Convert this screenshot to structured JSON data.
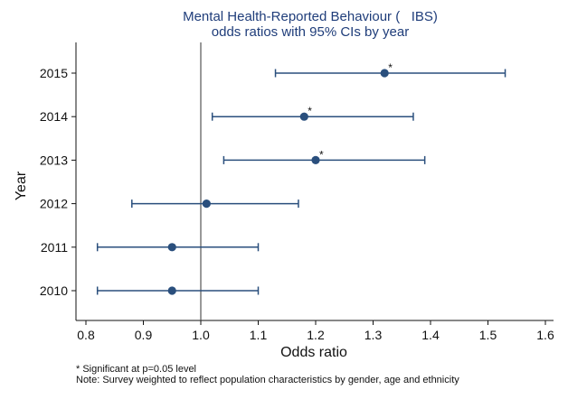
{
  "chart_data": {
    "type": "forest",
    "title": [
      "Mental Health-Reported Behaviour (   IBS)",
      "odds ratios with 95% CIs by year"
    ],
    "xlabel": "Odds ratio",
    "ylabel": "Year",
    "xlim": [
      0.8,
      1.6
    ],
    "xticks": [
      "0.8",
      "0.9",
      "1.0",
      "1.1",
      "1.2",
      "1.3",
      "1.4",
      "1.5",
      "1.6"
    ],
    "reference_line": 1.0,
    "categories": [
      "2015",
      "2014",
      "2013",
      "2012",
      "2011",
      "2010"
    ],
    "estimates": [
      {
        "year": "2015",
        "or": 1.32,
        "lower": 1.13,
        "upper": 1.53,
        "significant": true
      },
      {
        "year": "2014",
        "or": 1.18,
        "lower": 1.02,
        "upper": 1.37,
        "significant": true
      },
      {
        "year": "2013",
        "or": 1.2,
        "lower": 1.04,
        "upper": 1.39,
        "significant": true
      },
      {
        "year": "2012",
        "or": 1.01,
        "lower": 0.88,
        "upper": 1.17,
        "significant": false
      },
      {
        "year": "2011",
        "or": 0.95,
        "lower": 0.82,
        "upper": 1.1,
        "significant": false
      },
      {
        "year": "2010",
        "or": 0.95,
        "lower": 0.82,
        "upper": 1.1,
        "significant": false
      }
    ],
    "significance_marker": "*",
    "colors": {
      "series": "#2a4f7d",
      "axis": "#111111",
      "reference": "#555555",
      "title": "#1f3d7a"
    },
    "grid": false,
    "legend": "none"
  },
  "notes": [
    "* Significant at p=0.05 level",
    "Note: Survey weighted to reflect population characteristics by gender, age and ethnicity"
  ]
}
